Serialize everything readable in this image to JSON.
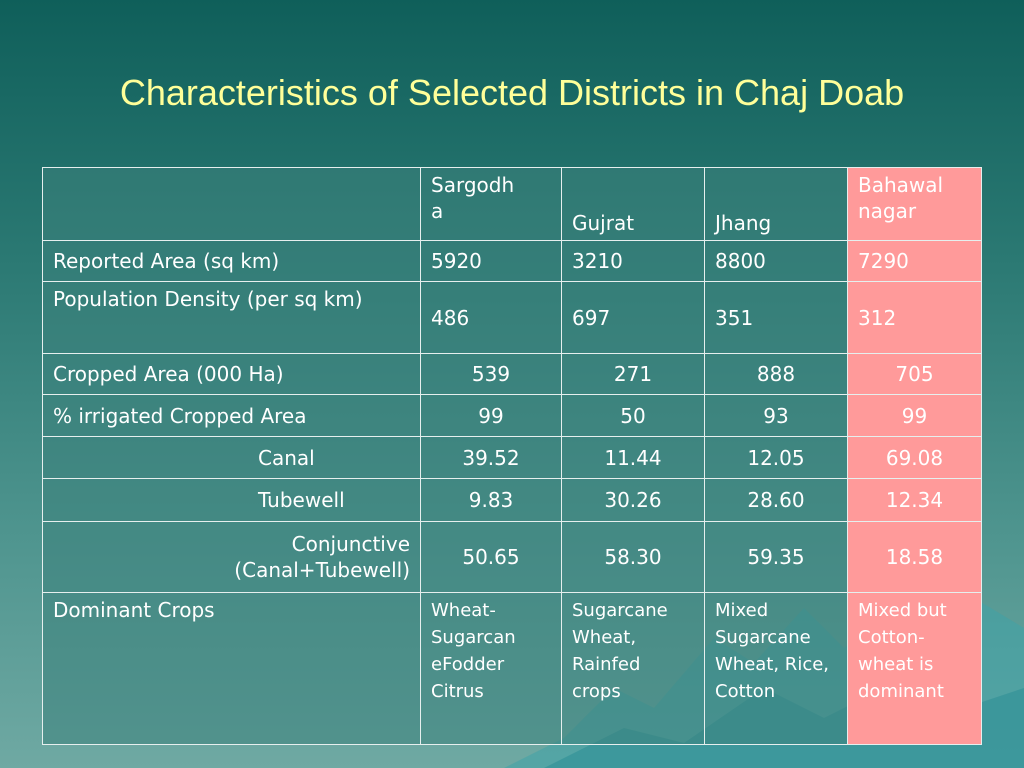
{
  "slide": {
    "title": "Characteristics of Selected Districts in Chaj Doab"
  },
  "table": {
    "header": [
      "",
      "Sargodh\na",
      "Gujrat",
      "Jhang",
      "Bahawal\nnagar"
    ],
    "rows": [
      [
        "Reported Area (sq km)",
        "5920",
        "3210",
        "8800",
        "7290"
      ],
      [
        "Population Density (per sq km)",
        "486",
        "697",
        "351",
        "312"
      ],
      [
        "Cropped Area (000 Ha)",
        "539",
        "271",
        "888",
        "705"
      ],
      [
        "% irrigated Cropped Area",
        "99",
        "50",
        "93",
        "99"
      ],
      [
        "Canal",
        "39.52",
        "11.44",
        "12.05",
        "69.08"
      ],
      [
        "Tubewell",
        "9.83",
        "30.26",
        "28.60",
        "12.34"
      ],
      [
        "Conjunctive (Canal+Tubewell)",
        "50.65",
        "58.30",
        "59.35",
        "18.58"
      ]
    ],
    "crops": {
      "label": "Dominant Crops",
      "sargodha": [
        "Wheat-Sugarcan eFodder",
        "Citrus"
      ],
      "gujrat": [
        "Sugarcane Wheat,",
        "Rainfed crops"
      ],
      "jhang": [
        "Mixed",
        "Sugarcane Wheat, Rice, Cotton"
      ],
      "bahawalnagar": [
        "Mixed but",
        "Cotton-wheat is dominant"
      ]
    }
  },
  "colors": {
    "title": "#ffff99",
    "highlight_column": "#ff9a9a",
    "background": "#2c7a74"
  }
}
